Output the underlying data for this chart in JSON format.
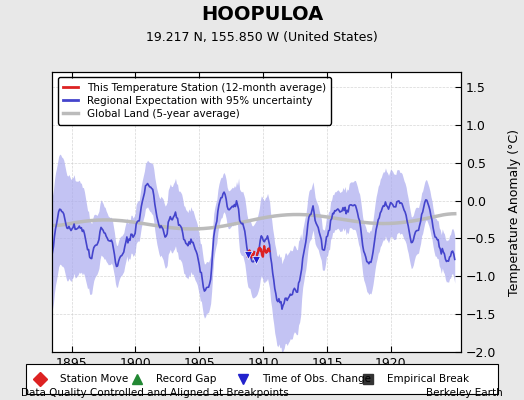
{
  "title": "HOOPULOA",
  "subtitle": "19.217 N, 155.850 W (United States)",
  "ylabel": "Temperature Anomaly (°C)",
  "footer_left": "Data Quality Controlled and Aligned at Breakpoints",
  "footer_right": "Berkeley Earth",
  "xlim": [
    1893.5,
    1925.5
  ],
  "ylim": [
    -2,
    1.7
  ],
  "yticks": [
    -2,
    -1.5,
    -1,
    -0.5,
    0,
    0.5,
    1,
    1.5
  ],
  "xticks": [
    1895,
    1900,
    1905,
    1910,
    1915,
    1920
  ],
  "bg_color": "#e8e8e8",
  "plot_bg_color": "#ffffff",
  "regional_color": "#4444cc",
  "regional_fill_color": "#aaaaee",
  "station_color": "#dd2222",
  "global_color": "#bbbbbb",
  "obs_marker_color": "#2222cc",
  "legend_items": [
    {
      "label": "This Temperature Station (12-month average)",
      "color": "#dd2222",
      "lw": 2
    },
    {
      "label": "Regional Expectation with 95% uncertainty",
      "color": "#4444cc",
      "lw": 2
    },
    {
      "label": "Global Land (5-year average)",
      "color": "#bbbbbb",
      "lw": 2
    }
  ],
  "bottom_legend": [
    {
      "label": "Station Move",
      "marker": "D",
      "color": "#dd2222"
    },
    {
      "label": "Record Gap",
      "marker": "^",
      "color": "#228833"
    },
    {
      "label": "Time of Obs. Change",
      "marker": "v",
      "color": "#2222cc"
    },
    {
      "label": "Empirical Break",
      "marker": "s",
      "color": "#333333"
    }
  ]
}
